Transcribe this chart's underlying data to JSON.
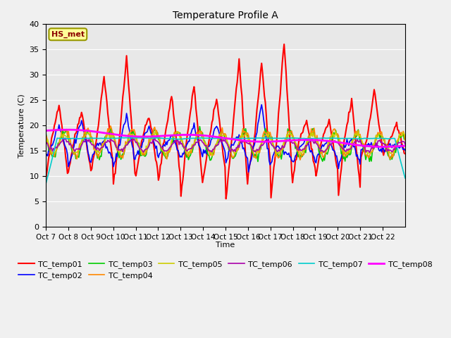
{
  "title": "Temperature Profile A",
  "xlabel": "Time",
  "ylabel": "Temperature (C)",
  "ylim": [
    0,
    40
  ],
  "annotation": "HS_met",
  "plot_bg": "#e8e8e8",
  "fig_bg": "#f0f0f0",
  "series_order": [
    "TC_temp01",
    "TC_temp02",
    "TC_temp03",
    "TC_temp04",
    "TC_temp05",
    "TC_temp06",
    "TC_temp07",
    "TC_temp08"
  ],
  "colors": {
    "TC_temp01": "#ff0000",
    "TC_temp02": "#0000ff",
    "TC_temp03": "#00cc00",
    "TC_temp04": "#ff8800",
    "TC_temp05": "#cccc00",
    "TC_temp06": "#aa00aa",
    "TC_temp07": "#00cccc",
    "TC_temp08": "#ff00ff"
  },
  "lws": {
    "TC_temp01": 1.5,
    "TC_temp02": 1.2,
    "TC_temp03": 1.2,
    "TC_temp04": 1.2,
    "TC_temp05": 1.2,
    "TC_temp06": 1.2,
    "TC_temp07": 1.2,
    "TC_temp08": 2.0
  },
  "x_tick_labels": [
    "Oct 7",
    "Oct 8",
    "Oct 9",
    "Oct 10",
    "Oct 11",
    "Oct 12",
    "Oct 13",
    "Oct 14",
    "Oct 15",
    "Oct 16",
    "Oct 17",
    "Oct 18",
    "Oct 19",
    "Oct 20",
    "Oct 21",
    "Oct 22"
  ],
  "n_days": 16,
  "pts_per_day": 24,
  "figsize": [
    6.4,
    4.8
  ],
  "dpi": 100
}
